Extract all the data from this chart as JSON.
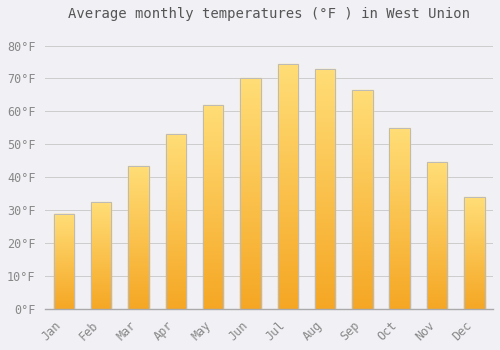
{
  "title": "Average monthly temperatures (°F ) in West Union",
  "months": [
    "Jan",
    "Feb",
    "Mar",
    "Apr",
    "May",
    "Jun",
    "Jul",
    "Aug",
    "Sep",
    "Oct",
    "Nov",
    "Dec"
  ],
  "values": [
    29,
    32.5,
    43.5,
    53,
    62,
    70,
    74.5,
    73,
    66.5,
    55,
    44.5,
    34
  ],
  "bar_color_bottom": "#F5A623",
  "bar_color_top": "#FFD966",
  "bar_edge_color": "#BBBBBB",
  "background_color": "#F0F0F5",
  "plot_bg_color": "#F0F0F5",
  "grid_color": "#CCCCCC",
  "tick_label_color": "#888888",
  "title_color": "#555555",
  "ylim": [
    0,
    85
  ],
  "yticks": [
    0,
    10,
    20,
    30,
    40,
    50,
    60,
    70,
    80
  ],
  "ytick_labels": [
    "0°F",
    "10°F",
    "20°F",
    "30°F",
    "40°F",
    "50°F",
    "60°F",
    "70°F",
    "80°F"
  ],
  "title_fontsize": 10,
  "tick_fontsize": 8.5,
  "bar_width": 0.55
}
